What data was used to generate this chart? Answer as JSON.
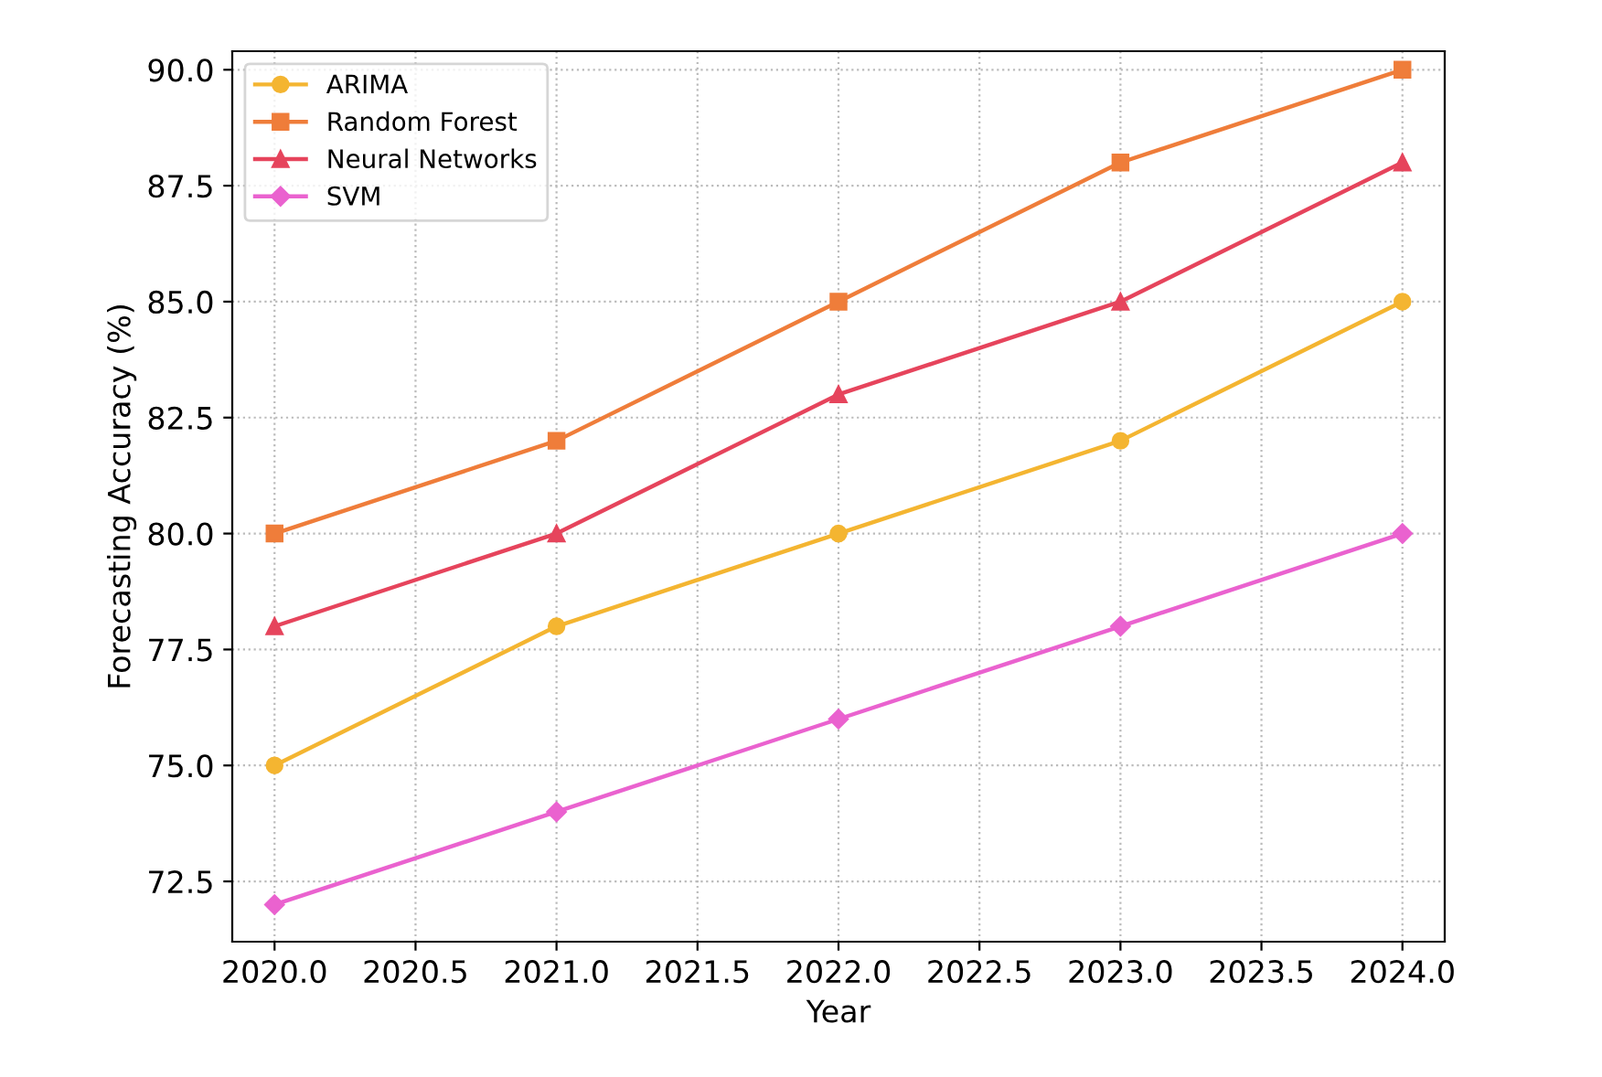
{
  "chart_data": {
    "type": "line",
    "xlabel": "Year",
    "ylabel": "Forecasting Accuracy (%)",
    "x": [
      2020,
      2021,
      2022,
      2023,
      2024
    ],
    "series": [
      {
        "name": "ARIMA",
        "color": "#f4b531",
        "marker": "circle",
        "values": [
          75,
          78,
          80,
          82,
          85
        ]
      },
      {
        "name": "Random Forest",
        "color": "#ef7d3a",
        "marker": "square",
        "values": [
          80,
          82,
          85,
          88,
          90
        ]
      },
      {
        "name": "Neural Networks",
        "color": "#e6445c",
        "marker": "triangle",
        "values": [
          78,
          80,
          83,
          85,
          88
        ]
      },
      {
        "name": "SVM",
        "color": "#ea62cf",
        "marker": "diamond",
        "values": [
          72,
          74,
          76,
          78,
          80
        ]
      }
    ],
    "xlim": [
      2019.85,
      2024.15
    ],
    "xticks": [
      {
        "value": 2020,
        "label": "2020.0"
      },
      2020.5,
      {
        "value": 2021,
        "label": "2021.0"
      },
      2021.5,
      {
        "value": 2022,
        "label": "2022.0"
      },
      2022.5,
      {
        "value": 2023,
        "label": "2023.0"
      },
      2023.5,
      {
        "value": 2024,
        "label": "2024.0"
      }
    ],
    "ylim": [
      71.2,
      90.4
    ],
    "yticks": [
      72.5,
      {
        "value": 75,
        "label": "75.0"
      },
      77.5,
      {
        "value": 80,
        "label": "80.0"
      },
      82.5,
      {
        "value": 85,
        "label": "85.0"
      },
      87.5,
      {
        "value": 90,
        "label": "90.0"
      }
    ],
    "grid": true,
    "legend": "top left",
    "line_style": "solid"
  }
}
